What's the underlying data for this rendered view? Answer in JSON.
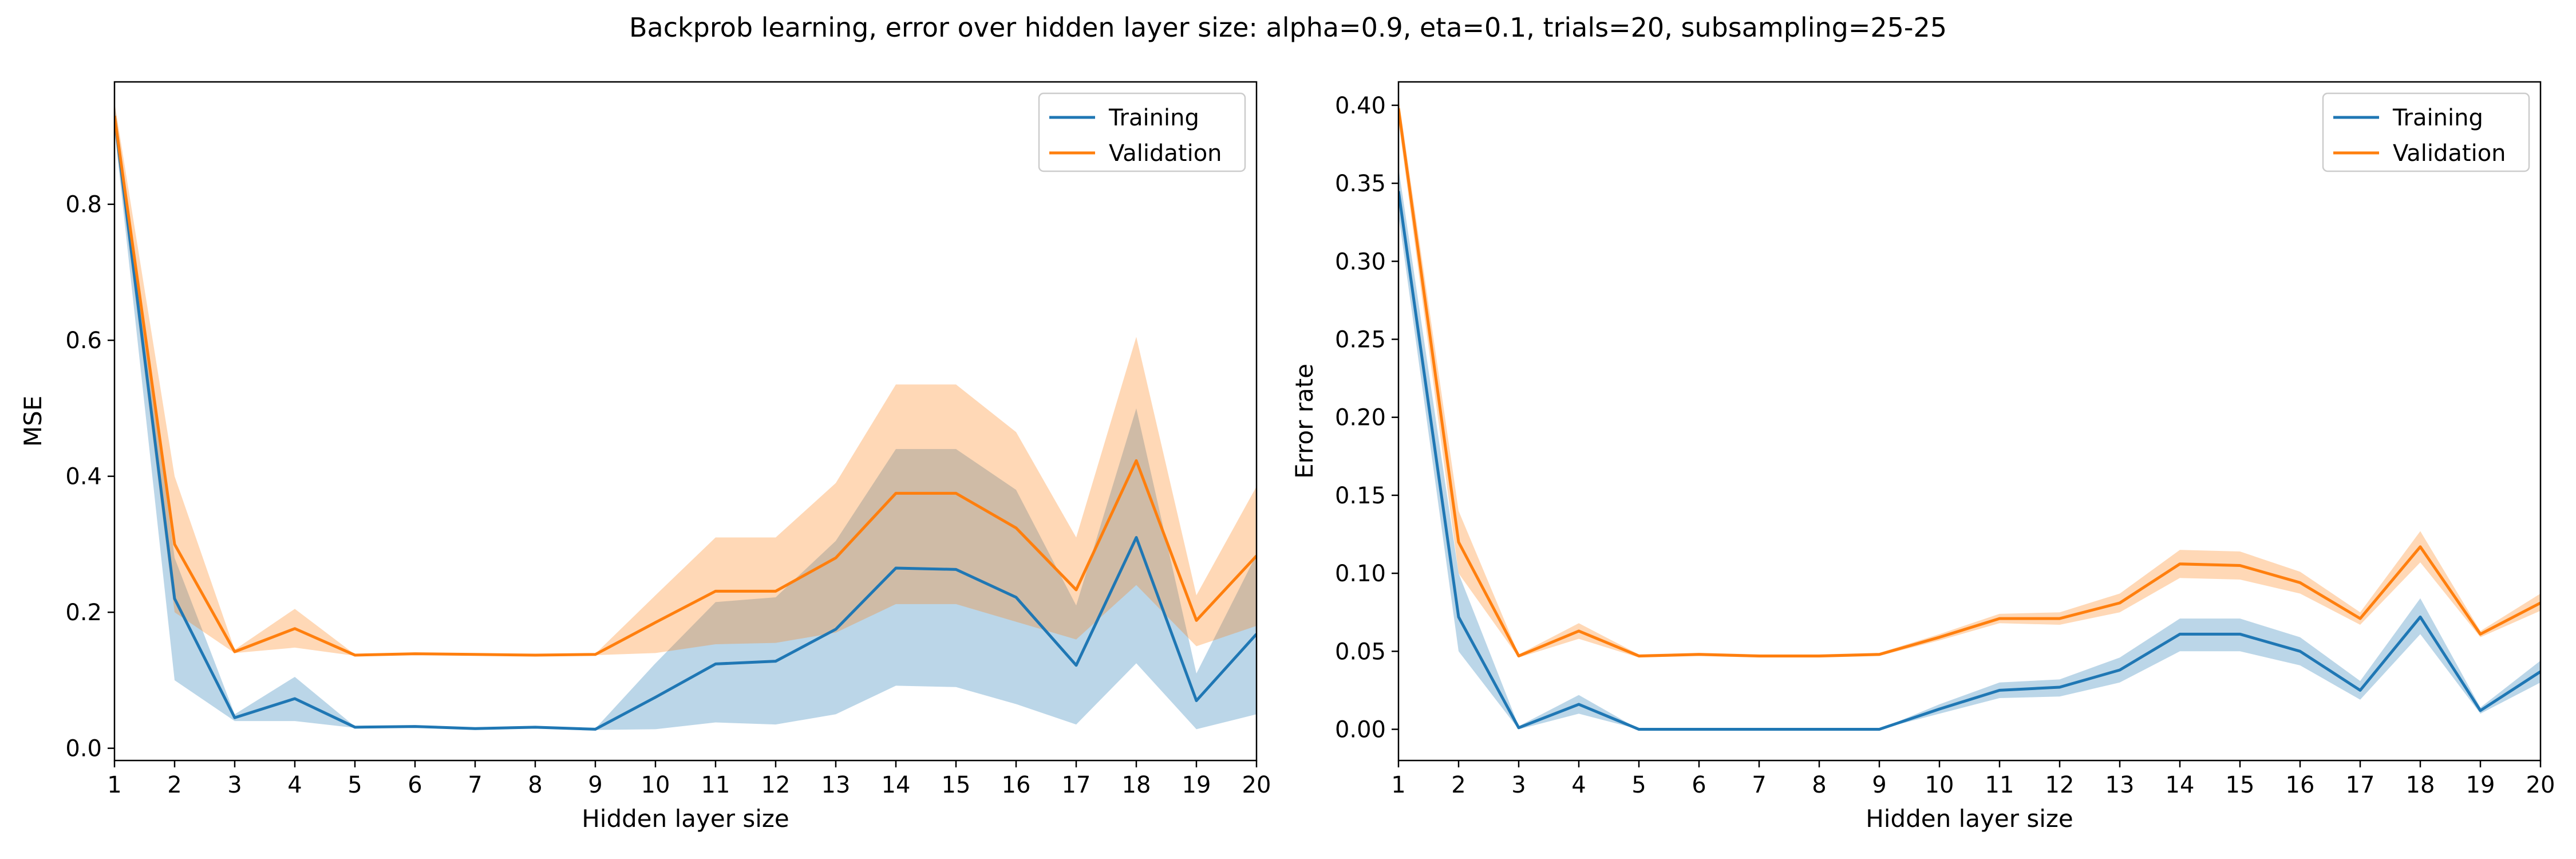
{
  "figure": {
    "title": "Backprob learning, error over hidden layer size: alpha=0.9, eta=0.1, trials=20, subsampling=25-25"
  },
  "colors": {
    "training": "#1f77b4",
    "validation": "#ff7f0e",
    "training_band": "#1f77b4",
    "validation_band": "#ff7f0e"
  },
  "chart_data": [
    {
      "type": "line",
      "xlabel": "Hidden layer size",
      "ylabel": "MSE",
      "xlim": [
        1,
        20
      ],
      "ylim": [
        -0.018,
        0.98
      ],
      "xticks": [
        1,
        2,
        3,
        4,
        5,
        6,
        7,
        8,
        9,
        10,
        11,
        12,
        13,
        14,
        15,
        16,
        17,
        18,
        19,
        20
      ],
      "yticks": [
        0.0,
        0.2,
        0.4,
        0.6,
        0.8
      ],
      "ytick_labels": [
        "0.0",
        "0.2",
        "0.4",
        "0.6",
        "0.8"
      ],
      "legend": "top-right",
      "grid": false,
      "x": [
        1,
        2,
        3,
        4,
        5,
        6,
        7,
        8,
        9,
        10,
        11,
        12,
        13,
        14,
        15,
        16,
        17,
        18,
        19,
        20
      ],
      "series": [
        {
          "name": "Training",
          "values": [
            0.93,
            0.22,
            0.045,
            0.073,
            0.031,
            0.032,
            0.029,
            0.031,
            0.028,
            0.075,
            0.124,
            0.128,
            0.175,
            0.265,
            0.263,
            0.222,
            0.122,
            0.31,
            0.07,
            0.168
          ],
          "lower": [
            0.91,
            0.1,
            0.04,
            0.04,
            0.03,
            0.03,
            0.028,
            0.03,
            0.027,
            0.028,
            0.038,
            0.035,
            0.05,
            0.092,
            0.09,
            0.065,
            0.035,
            0.125,
            0.028,
            0.05
          ],
          "upper": [
            0.95,
            0.28,
            0.05,
            0.105,
            0.032,
            0.033,
            0.03,
            0.032,
            0.029,
            0.125,
            0.215,
            0.222,
            0.305,
            0.44,
            0.44,
            0.38,
            0.21,
            0.5,
            0.11,
            0.285
          ]
        },
        {
          "name": "Validation",
          "values": [
            0.93,
            0.3,
            0.142,
            0.176,
            0.137,
            0.139,
            0.138,
            0.137,
            0.138,
            0.185,
            0.231,
            0.231,
            0.28,
            0.375,
            0.375,
            0.324,
            0.233,
            0.423,
            0.188,
            0.283
          ],
          "lower": [
            0.91,
            0.2,
            0.14,
            0.148,
            0.136,
            0.138,
            0.137,
            0.136,
            0.137,
            0.14,
            0.153,
            0.155,
            0.17,
            0.212,
            0.212,
            0.186,
            0.16,
            0.24,
            0.15,
            0.18
          ],
          "upper": [
            0.95,
            0.4,
            0.145,
            0.205,
            0.138,
            0.14,
            0.139,
            0.138,
            0.139,
            0.225,
            0.31,
            0.31,
            0.39,
            0.535,
            0.535,
            0.465,
            0.31,
            0.605,
            0.225,
            0.385
          ]
        }
      ]
    },
    {
      "type": "line",
      "xlabel": "Hidden layer size",
      "ylabel": "Error rate",
      "xlim": [
        1,
        20
      ],
      "ylim": [
        -0.02,
        0.415
      ],
      "xticks": [
        1,
        2,
        3,
        4,
        5,
        6,
        7,
        8,
        9,
        10,
        11,
        12,
        13,
        14,
        15,
        16,
        17,
        18,
        19,
        20
      ],
      "yticks": [
        0.0,
        0.05,
        0.1,
        0.15,
        0.2,
        0.25,
        0.3,
        0.35,
        0.4
      ],
      "ytick_labels": [
        "0.00",
        "0.05",
        "0.10",
        "0.15",
        "0.20",
        "0.25",
        "0.30",
        "0.35",
        "0.40"
      ],
      "legend": "top-right",
      "grid": false,
      "x": [
        1,
        2,
        3,
        4,
        5,
        6,
        7,
        8,
        9,
        10,
        11,
        12,
        13,
        14,
        15,
        16,
        17,
        18,
        19,
        20
      ],
      "series": [
        {
          "name": "Training",
          "values": [
            0.345,
            0.072,
            0.001,
            0.016,
            0.0,
            0.0,
            0.0,
            0.0,
            0.0,
            0.013,
            0.025,
            0.027,
            0.038,
            0.061,
            0.061,
            0.05,
            0.025,
            0.072,
            0.012,
            0.037
          ],
          "lower": [
            0.33,
            0.05,
            0.0,
            0.01,
            0.0,
            0.0,
            0.0,
            0.0,
            0.0,
            0.01,
            0.02,
            0.021,
            0.03,
            0.05,
            0.05,
            0.041,
            0.019,
            0.061,
            0.01,
            0.03
          ],
          "upper": [
            0.36,
            0.1,
            0.002,
            0.022,
            0.0,
            0.0,
            0.0,
            0.0,
            0.0,
            0.016,
            0.03,
            0.032,
            0.046,
            0.071,
            0.071,
            0.059,
            0.031,
            0.084,
            0.014,
            0.044
          ]
        },
        {
          "name": "Validation",
          "values": [
            0.398,
            0.12,
            0.047,
            0.063,
            0.047,
            0.048,
            0.047,
            0.047,
            0.048,
            0.059,
            0.071,
            0.071,
            0.081,
            0.106,
            0.105,
            0.094,
            0.071,
            0.117,
            0.061,
            0.081
          ],
          "lower": [
            0.39,
            0.1,
            0.046,
            0.058,
            0.046,
            0.047,
            0.046,
            0.046,
            0.047,
            0.057,
            0.068,
            0.067,
            0.075,
            0.097,
            0.096,
            0.087,
            0.067,
            0.107,
            0.059,
            0.076
          ],
          "upper": [
            0.405,
            0.14,
            0.048,
            0.068,
            0.048,
            0.049,
            0.048,
            0.048,
            0.049,
            0.061,
            0.074,
            0.075,
            0.087,
            0.115,
            0.114,
            0.101,
            0.075,
            0.127,
            0.063,
            0.087
          ]
        }
      ]
    }
  ]
}
